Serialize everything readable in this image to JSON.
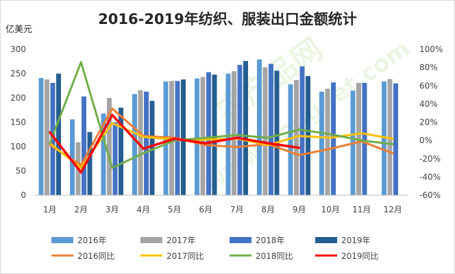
{
  "chart_data": {
    "type": "bar+line",
    "title": "2016-2019年纺织、服装出口金额统计",
    "ylabel_left": "亿美元",
    "ylim_left": [
      0,
      300
    ],
    "yticks_left": [
      "0",
      "50",
      "100",
      "150",
      "200",
      "250",
      "300"
    ],
    "ylim_right": [
      -60,
      100
    ],
    "yticks_right": [
      "-60%",
      "-40%",
      "-20%",
      "0%",
      "20%",
      "40%",
      "60%",
      "80%",
      "100%"
    ],
    "categories": [
      "1月",
      "2月",
      "3月",
      "4月",
      "5月",
      "6月",
      "7月",
      "8月",
      "9月",
      "10月",
      "11月",
      "12月"
    ],
    "bar_series": [
      {
        "name": "2016年",
        "color": "#5b9bd5",
        "values": [
          241,
          156,
          168,
          208,
          234,
          240,
          250,
          279,
          228,
          213,
          215,
          234
        ]
      },
      {
        "name": "2017年",
        "color": "#a5a5a5",
        "values": [
          238,
          109,
          200,
          216,
          235,
          243,
          255,
          263,
          237,
          219,
          231,
          239
        ]
      },
      {
        "name": "2018年",
        "color": "#4472c4",
        "values": [
          231,
          203,
          150,
          213,
          235,
          253,
          268,
          270,
          265,
          232,
          231,
          230
        ]
      },
      {
        "name": "2019年",
        "color": "#255e91",
        "values": [
          250,
          130,
          180,
          194,
          238,
          248,
          276,
          256,
          245,
          null,
          null,
          null
        ]
      }
    ],
    "line_series": [
      {
        "name": "2016同比",
        "color": "#ed7d31",
        "values": [
          -5,
          -27,
          35,
          5,
          3,
          -5,
          -7,
          -4,
          -16,
          -9,
          -1,
          -14
        ]
      },
      {
        "name": "2017同比",
        "color": "#ffc000",
        "values": [
          -3,
          -30,
          19,
          4,
          1,
          1,
          2,
          -5,
          5,
          3,
          8,
          2
        ]
      },
      {
        "name": "2018同比",
        "color": "#70ad47",
        "values": [
          -3,
          86,
          -30,
          -14,
          0,
          3,
          6,
          3,
          12,
          7,
          0,
          -4
        ]
      },
      {
        "name": "2019同比",
        "color": "#ff0000",
        "values": [
          9,
          -35,
          28,
          -9,
          2,
          -3,
          3,
          -3,
          -8,
          null,
          null,
          null
        ]
      }
    ],
    "legend_placement": "bottom",
    "grid": false
  },
  "watermark": {
    "line1": "农产品网",
    "line2": "www.nongnet.com"
  }
}
